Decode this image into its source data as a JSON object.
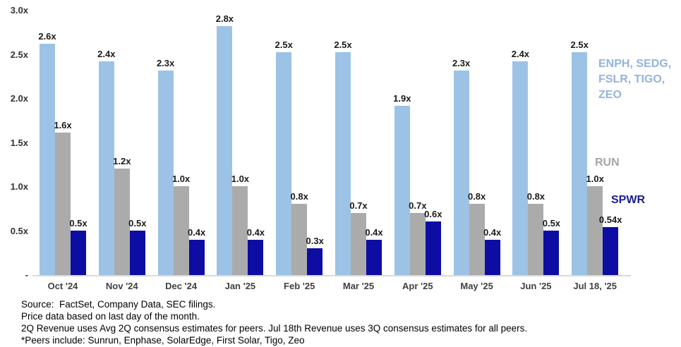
{
  "chart_data": {
    "type": "bar",
    "title": "",
    "xlabel": "",
    "ylabel": "",
    "grid": false,
    "legend_position": "right-inline",
    "categories": [
      "Oct '24",
      "Nov '24",
      "Dec '24",
      "Jan '25",
      "Feb '25",
      "Mar '25",
      "Apr '25",
      "May '25",
      "Jun '25",
      "Jul 18, '25"
    ],
    "series": [
      {
        "name": "ENPH, SEDG, FSLR, TIGO, ZEO",
        "color": "#9CC3E5",
        "values": [
          2.6,
          2.4,
          2.3,
          2.8,
          2.5,
          2.5,
          1.9,
          2.3,
          2.4,
          2.5
        ],
        "labels": [
          "2.6x",
          "2.4x",
          "2.3x",
          "2.8x",
          "2.5x",
          "2.5x",
          "1.9x",
          "2.3x",
          "2.4x",
          "2.5x"
        ]
      },
      {
        "name": "RUN",
        "color": "#ABABAB",
        "values": [
          1.6,
          1.2,
          1.0,
          1.0,
          0.8,
          0.7,
          0.7,
          0.8,
          0.8,
          1.0
        ],
        "labels": [
          "1.6x",
          "1.2x",
          "1.0x",
          "1.0x",
          "0.8x",
          "0.7x",
          "0.7x",
          "0.8x",
          "0.8x",
          "1.0x"
        ]
      },
      {
        "name": "SPWR",
        "color": "#0D0DA3",
        "values": [
          0.5,
          0.5,
          0.4,
          0.4,
          0.3,
          0.4,
          0.6,
          0.4,
          0.5,
          0.54
        ],
        "labels": [
          "0.5x",
          "0.5x",
          "0.4x",
          "0.4x",
          "0.3x",
          "0.4x",
          "0.6x",
          "0.4x",
          "0.5x",
          "0.54x"
        ]
      }
    ],
    "y_axis": {
      "min": 0,
      "max": 3.0,
      "ticks": [
        {
          "label": "3.0x",
          "value": 3.0
        },
        {
          "label": "2.5x",
          "value": 2.5
        },
        {
          "label": "2.0x",
          "value": 2.0
        },
        {
          "label": "1.5x",
          "value": 1.5
        },
        {
          "label": "1.0x",
          "value": 1.0
        },
        {
          "label": "0.5x",
          "value": 0.5
        },
        {
          "label": "-",
          "value": 0
        }
      ]
    }
  },
  "legend": {
    "peers_lines": [
      "ENPH, SEDG,",
      "FSLR, TIGO,",
      "ZEO"
    ],
    "peers_color": "#95B3DB",
    "run_label": "RUN",
    "run_color": "#A6A6A6",
    "spwr_label": "SPWR",
    "spwr_color": "#1B1B96"
  },
  "footnotes": [
    "Source:  FactSet, Company Data, SEC filings.",
    "Price data based on last day of the month.",
    "2Q Revenue uses Avg 2Q consensus estimates for peers. Jul 18th Revenue uses 3Q consensus estimates for all peers.",
    "*Peers include: Sunrun, Enphase, SolarEdge, First Solar, Tigo, Zeo"
  ]
}
